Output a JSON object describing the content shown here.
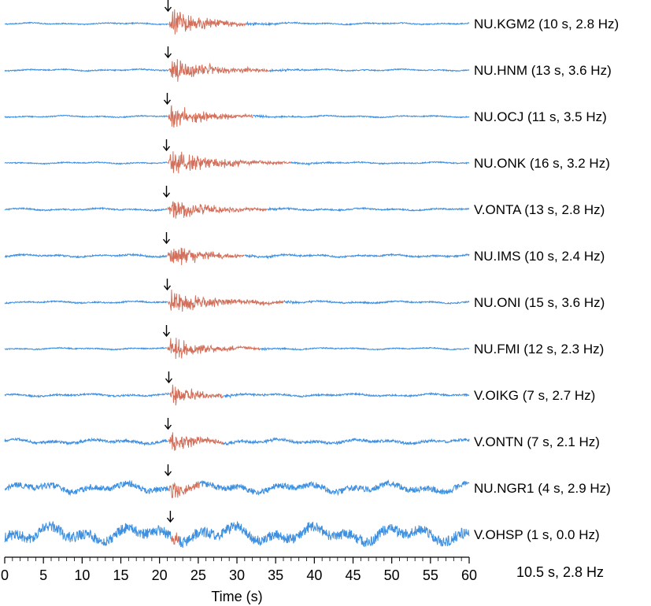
{
  "chart_data": {
    "type": "line",
    "xlabel": "Time (s)",
    "xlim": [
      0,
      60
    ],
    "xticks": [
      "0",
      "5",
      "10",
      "15",
      "20",
      "25",
      "30",
      "35",
      "40",
      "45",
      "50",
      "55",
      "60"
    ],
    "summary": "10.5 s, 2.8 Hz",
    "noise_color": "#3d8fe0",
    "signal_color": "#d2705c",
    "series": [
      {
        "name": "NU.KGM2 (10 s, 2.8 Hz)",
        "arrival": 21.2,
        "signal_end": 31.2,
        "amp": 1.0,
        "noise": 0.04
      },
      {
        "name": "NU.HNM (13 s, 3.6 Hz)",
        "arrival": 21.2,
        "signal_end": 34.2,
        "amp": 0.8,
        "noise": 0.04
      },
      {
        "name": "NU.OCJ (11 s, 3.5 Hz)",
        "arrival": 21.1,
        "signal_end": 32.1,
        "amp": 0.8,
        "noise": 0.04
      },
      {
        "name": "NU.ONK (16 s, 3.2 Hz)",
        "arrival": 21.0,
        "signal_end": 37.0,
        "amp": 0.8,
        "noise": 0.04
      },
      {
        "name": "V.ONTA (13 s, 2.8 Hz)",
        "arrival": 21.0,
        "signal_end": 34.0,
        "amp": 0.75,
        "noise": 0.05
      },
      {
        "name": "NU.IMS (10 s, 2.4 Hz)",
        "arrival": 21.0,
        "signal_end": 31.0,
        "amp": 0.8,
        "noise": 0.06
      },
      {
        "name": "NU.ONI (15 s, 3.6 Hz)",
        "arrival": 21.1,
        "signal_end": 36.1,
        "amp": 0.8,
        "noise": 0.05
      },
      {
        "name": "NU.FMI (12 s, 2.3 Hz)",
        "arrival": 21.0,
        "signal_end": 33.0,
        "amp": 0.75,
        "noise": 0.04
      },
      {
        "name": "V.OIKG (7 s, 2.7 Hz)",
        "arrival": 21.3,
        "signal_end": 28.3,
        "amp": 0.85,
        "noise": 0.06
      },
      {
        "name": "V.ONTN (7 s, 2.1 Hz)",
        "arrival": 21.2,
        "signal_end": 28.2,
        "amp": 0.8,
        "noise": 0.1
      },
      {
        "name": "NU.NGR1 (4 s, 2.9 Hz)",
        "arrival": 21.2,
        "signal_end": 25.2,
        "amp": 0.75,
        "noise": 0.22
      },
      {
        "name": "V.OHSP (1 s, 0.0 Hz)",
        "arrival": 21.5,
        "signal_end": 22.5,
        "amp": 0.7,
        "noise": 0.4
      }
    ]
  }
}
